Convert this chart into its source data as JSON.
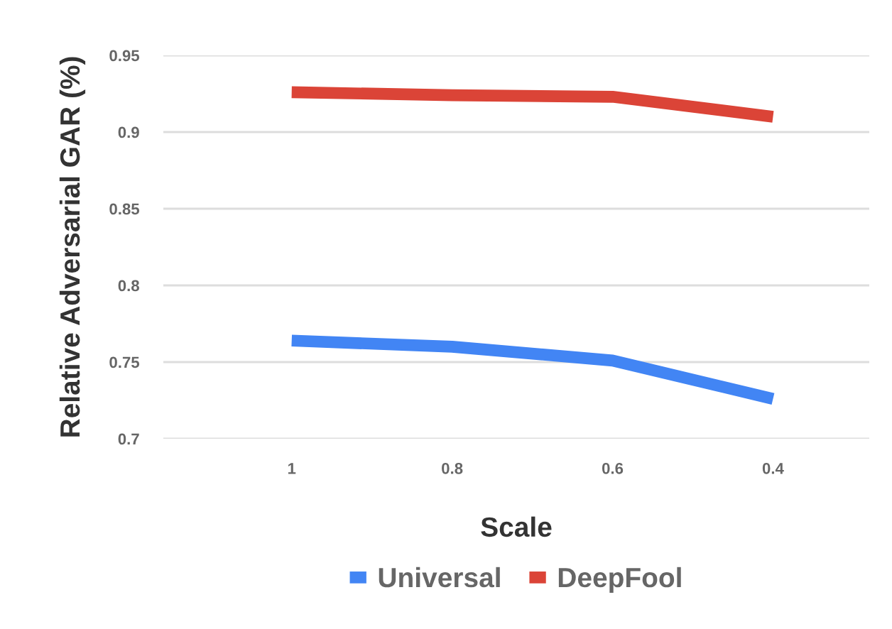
{
  "chart_data": {
    "type": "line",
    "xlabel": "Scale",
    "ylabel": "Relative Adversarial GAR (%)",
    "categories": [
      "1",
      "0.8",
      "0.6",
      "0.4"
    ],
    "series": [
      {
        "name": "Universal",
        "color": "#4285f4",
        "values": [
          0.764,
          0.76,
          0.751,
          0.726
        ]
      },
      {
        "name": "DeepFool",
        "color": "#db4437",
        "values": [
          0.926,
          0.924,
          0.923,
          0.91
        ]
      }
    ],
    "ylim": [
      0.7,
      0.95
    ],
    "yticks": [
      0.7,
      0.75,
      0.8,
      0.85,
      0.9,
      0.95
    ],
    "grid": "y",
    "legend": "bottom",
    "marker": "none",
    "line_style": "solid"
  }
}
